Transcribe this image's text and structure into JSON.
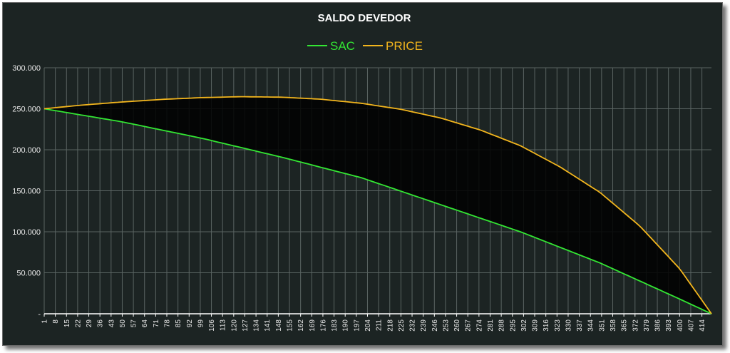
{
  "chart_data": {
    "type": "line",
    "title": "SALDO DEVEDOR",
    "legend_position": "top",
    "grid": true,
    "colors": {
      "background": "#1c2423",
      "grid": "#5a6462",
      "axis": "#ffffff",
      "text": "#ffffff",
      "fill": "#000000"
    },
    "x": {
      "min": 1,
      "max": 420,
      "ticks": [
        1,
        8,
        15,
        22,
        29,
        36,
        43,
        50,
        57,
        64,
        71,
        78,
        85,
        92,
        99,
        106,
        113,
        120,
        127,
        134,
        141,
        148,
        155,
        162,
        169,
        176,
        183,
        190,
        197,
        204,
        211,
        218,
        225,
        232,
        239,
        246,
        253,
        260,
        267,
        274,
        281,
        288,
        295,
        302,
        309,
        316,
        323,
        330,
        337,
        344,
        351,
        358,
        365,
        372,
        379,
        386,
        393,
        400,
        407,
        414
      ]
    },
    "y": {
      "min": 0,
      "max": 300000,
      "ticks": [
        0,
        50000,
        100000,
        150000,
        200000,
        250000,
        300000
      ],
      "tick_labels": [
        "-",
        "50.000",
        "100.000",
        "150.000",
        "200.000",
        "250.000",
        "300.000"
      ]
    },
    "series": [
      {
        "name": "SAC",
        "color": "#33e633",
        "x": [
          1,
          50,
          100,
          150,
          200,
          250,
          300,
          350,
          400,
          420
        ],
        "values": [
          250000,
          234000,
          214000,
          191000,
          166000,
          133000,
          100000,
          62000,
          18000,
          0
        ]
      },
      {
        "name": "PRICE",
        "color": "#f2b51d",
        "x": [
          1,
          25,
          50,
          75,
          100,
          125,
          150,
          175,
          200,
          225,
          250,
          275,
          300,
          325,
          350,
          375,
          400,
          420
        ],
        "values": [
          250000,
          254500,
          258300,
          261400,
          263600,
          264700,
          264100,
          261600,
          256700,
          249300,
          238700,
          224000,
          205000,
          179000,
          148000,
          107000,
          55000,
          0
        ]
      }
    ]
  }
}
